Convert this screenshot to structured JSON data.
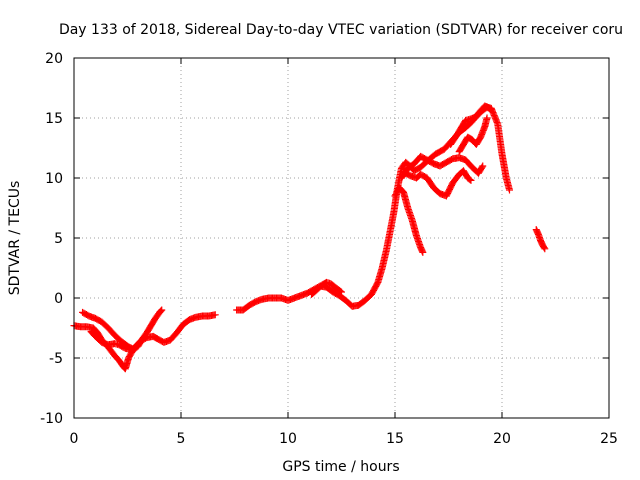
{
  "chart_data": {
    "type": "scatter",
    "title": "Day 133 of 2018, Sidereal Day-to-day VTEC variation (SDTVAR) for receiver coru",
    "xlabel": "GPS time / hours",
    "ylabel": "SDTVAR / TECUs",
    "xlim": [
      0,
      25
    ],
    "ylim": [
      -10,
      20
    ],
    "x_ticks": [
      0,
      5,
      10,
      15,
      20,
      25
    ],
    "y_ticks": [
      -10,
      -5,
      0,
      5,
      10,
      15,
      20
    ],
    "x_tick_labels": [
      "0",
      "5",
      "10",
      "15",
      "20",
      "25"
    ],
    "y_tick_labels": [
      "-10",
      "-5",
      "0",
      "5",
      "10",
      "15",
      "20"
    ],
    "grid": true,
    "marker": "+",
    "color": "#ff0000",
    "series": [
      {
        "values": [
          [
            0.0,
            -2.3
          ],
          [
            0.3,
            -2.4
          ],
          [
            0.6,
            -2.4
          ],
          [
            0.9,
            -2.5
          ],
          [
            1.1,
            -2.9
          ],
          [
            1.3,
            -3.5
          ],
          [
            1.6,
            -4.1
          ],
          [
            1.9,
            -4.8
          ],
          [
            2.1,
            -5.2
          ],
          [
            2.3,
            -5.7
          ],
          [
            2.4,
            -5.9
          ],
          [
            2.55,
            -5.0
          ],
          [
            2.8,
            -4.2
          ],
          [
            3.1,
            -3.6
          ],
          [
            3.4,
            -3.3
          ],
          [
            3.7,
            -3.2
          ],
          [
            3.9,
            -3.4
          ],
          [
            4.2,
            -3.7
          ],
          [
            4.5,
            -3.5
          ],
          [
            4.8,
            -2.9
          ],
          [
            5.1,
            -2.2
          ],
          [
            5.4,
            -1.8
          ],
          [
            5.7,
            -1.6
          ],
          [
            6.0,
            -1.5
          ],
          [
            6.3,
            -1.5
          ],
          [
            6.6,
            -1.4
          ]
        ]
      },
      {
        "values": [
          [
            0.4,
            -1.2
          ],
          [
            0.7,
            -1.5
          ],
          [
            1.0,
            -1.7
          ],
          [
            1.3,
            -2.0
          ],
          [
            1.6,
            -2.5
          ],
          [
            1.9,
            -3.1
          ],
          [
            2.2,
            -3.6
          ],
          [
            2.5,
            -4.0
          ],
          [
            2.8,
            -4.3
          ],
          [
            3.0,
            -4.0
          ],
          [
            3.2,
            -3.4
          ],
          [
            3.4,
            -2.9
          ],
          [
            3.6,
            -2.3
          ],
          [
            3.8,
            -1.7
          ],
          [
            4.0,
            -1.2
          ],
          [
            4.1,
            -1.0
          ]
        ]
      },
      {
        "values": [
          [
            0.8,
            -2.8
          ],
          [
            1.0,
            -3.2
          ],
          [
            1.3,
            -3.7
          ],
          [
            1.6,
            -3.9
          ],
          [
            1.9,
            -3.8
          ],
          [
            2.1,
            -3.9
          ],
          [
            2.4,
            -4.2
          ],
          [
            2.7,
            -4.3
          ],
          [
            3.0,
            -3.9
          ]
        ]
      },
      {
        "values": [
          [
            7.6,
            -1.0
          ],
          [
            7.9,
            -1.0
          ],
          [
            8.2,
            -0.6
          ],
          [
            8.5,
            -0.3
          ],
          [
            8.8,
            -0.1
          ],
          [
            9.1,
            0.0
          ],
          [
            9.4,
            0.0
          ],
          [
            9.7,
            0.0
          ],
          [
            10.0,
            -0.2
          ],
          [
            10.3,
            0.0
          ],
          [
            10.6,
            0.2
          ],
          [
            10.9,
            0.4
          ],
          [
            11.2,
            0.7
          ],
          [
            11.5,
            1.0
          ],
          [
            11.8,
            0.9
          ],
          [
            12.1,
            0.5
          ],
          [
            12.4,
            0.2
          ],
          [
            12.7,
            -0.2
          ],
          [
            13.0,
            -0.7
          ],
          [
            13.3,
            -0.6
          ],
          [
            13.6,
            -0.2
          ],
          [
            13.9,
            0.3
          ],
          [
            14.2,
            1.3
          ],
          [
            14.4,
            2.5
          ],
          [
            14.6,
            4.0
          ],
          [
            14.8,
            5.8
          ],
          [
            14.95,
            7.2
          ],
          [
            15.1,
            9.0
          ],
          [
            15.3,
            10.8
          ],
          [
            15.5,
            11.3
          ],
          [
            15.7,
            11.0
          ],
          [
            15.9,
            10.6
          ],
          [
            16.2,
            10.9
          ],
          [
            16.5,
            11.4
          ],
          [
            16.9,
            12.0
          ],
          [
            17.3,
            12.4
          ],
          [
            17.7,
            13.2
          ],
          [
            18.0,
            13.8
          ],
          [
            18.3,
            14.2
          ],
          [
            18.6,
            14.7
          ],
          [
            18.9,
            15.4
          ],
          [
            19.2,
            16.0
          ],
          [
            19.5,
            15.8
          ],
          [
            19.8,
            14.5
          ],
          [
            20.0,
            12.0
          ],
          [
            20.2,
            10.0
          ],
          [
            20.35,
            9.0
          ]
        ]
      },
      {
        "values": [
          [
            11.1,
            0.3
          ],
          [
            11.3,
            0.6
          ],
          [
            11.6,
            1.1
          ],
          [
            11.8,
            1.3
          ],
          [
            12.0,
            1.2
          ],
          [
            12.2,
            0.9
          ],
          [
            12.5,
            0.5
          ]
        ]
      },
      {
        "values": [
          [
            15.0,
            8.5
          ],
          [
            15.2,
            9.2
          ],
          [
            15.4,
            8.8
          ],
          [
            15.6,
            7.5
          ],
          [
            15.8,
            6.5
          ],
          [
            16.0,
            5.2
          ],
          [
            16.2,
            4.2
          ],
          [
            16.3,
            3.8
          ]
        ]
      },
      {
        "values": [
          [
            15.3,
            10.0
          ],
          [
            15.6,
            10.8
          ],
          [
            15.9,
            11.2
          ],
          [
            16.2,
            11.8
          ],
          [
            16.5,
            11.5
          ],
          [
            16.8,
            11.2
          ],
          [
            17.1,
            11.0
          ],
          [
            17.4,
            11.3
          ],
          [
            17.7,
            11.6
          ],
          [
            18.0,
            11.7
          ],
          [
            18.3,
            11.5
          ],
          [
            18.6,
            10.9
          ],
          [
            18.9,
            10.4
          ],
          [
            19.1,
            11.0
          ]
        ]
      },
      {
        "values": [
          [
            15.4,
            10.5
          ],
          [
            15.7,
            10.2
          ],
          [
            16.0,
            10.0
          ],
          [
            16.2,
            10.3
          ],
          [
            16.5,
            10.0
          ],
          [
            16.8,
            9.2
          ],
          [
            17.1,
            8.7
          ],
          [
            17.4,
            8.5
          ],
          [
            17.7,
            9.6
          ],
          [
            18.0,
            10.3
          ],
          [
            18.2,
            10.6
          ],
          [
            18.4,
            10.0
          ],
          [
            18.55,
            9.8
          ]
        ]
      },
      {
        "values": [
          [
            17.6,
            12.8
          ],
          [
            17.9,
            13.6
          ],
          [
            18.1,
            14.2
          ],
          [
            18.3,
            14.8
          ],
          [
            18.5,
            14.9
          ],
          [
            18.8,
            15.1
          ],
          [
            19.0,
            15.5
          ],
          [
            19.3,
            15.9
          ],
          [
            19.5,
            15.7
          ]
        ]
      },
      {
        "values": [
          [
            18.0,
            12.2
          ],
          [
            18.2,
            12.8
          ],
          [
            18.4,
            13.4
          ],
          [
            18.6,
            13.2
          ],
          [
            18.8,
            12.8
          ],
          [
            19.0,
            13.4
          ],
          [
            19.2,
            14.3
          ],
          [
            19.3,
            15.0
          ]
        ]
      },
      {
        "values": [
          [
            21.6,
            5.7
          ],
          [
            21.7,
            5.3
          ],
          [
            21.8,
            4.8
          ],
          [
            21.9,
            4.4
          ],
          [
            22.0,
            4.1
          ]
        ]
      }
    ]
  }
}
